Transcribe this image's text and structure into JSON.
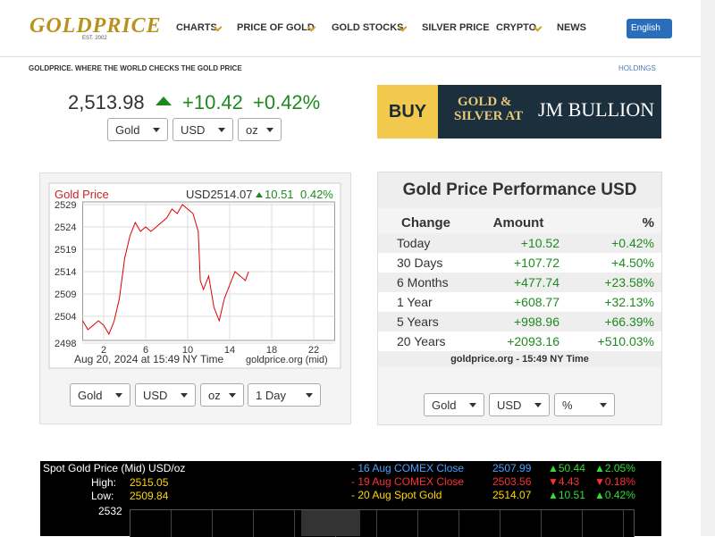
{
  "header": {
    "logo": "GOLDPRICE",
    "logo_tag": "EST. 2002",
    "nav": [
      "CHARTS",
      "PRICE OF GOLD",
      "GOLD STOCKS",
      "SILVER PRICE",
      "CRYPTO",
      "NEWS"
    ],
    "language": "English"
  },
  "subheader": {
    "tagline": "GOLDPRICE. WHERE THE WORLD CHECKS THE GOLD PRICE",
    "holdings": "HOLDINGS"
  },
  "quote": {
    "price": "2,513.98",
    "change": "+10.42",
    "change_pct": "+0.42%",
    "selects": [
      "Gold",
      "USD",
      "oz"
    ]
  },
  "ad": {
    "buy": "BUY",
    "line1": "GOLD &",
    "line2": "SILVER AT",
    "brand": "JM BULLION"
  },
  "price_chart": {
    "type": "line",
    "title": "Gold Price",
    "price": "USD2514.07",
    "change": "10.51",
    "change_pct": "0.42%",
    "unit": "oz",
    "caption": "Aug 20, 2024 at 15:49 NY Time",
    "source": "goldprice.org (mid)",
    "color": "#dd0000",
    "grid": true,
    "xlim": [
      0,
      24
    ],
    "xticks": [
      2,
      6,
      10,
      14,
      18,
      22
    ],
    "ylim": [
      2497,
      2529.6
    ],
    "yticks": [
      2498,
      2504,
      2509,
      2514,
      2519,
      2524,
      2529
    ],
    "x": [
      0,
      0.5,
      1,
      1.5,
      2,
      2.5,
      3,
      3.5,
      4,
      4.5,
      5,
      5.5,
      6,
      6.5,
      7,
      7.5,
      8,
      8.5,
      9,
      9.5,
      10,
      10.5,
      11,
      11.2,
      11.5,
      12,
      12.5,
      13,
      13.5,
      14,
      14.5,
      15,
      15.5,
      15.8
    ],
    "values": [
      2503,
      2501,
      2502,
      2503,
      2502,
      2500,
      2503,
      2508,
      2517,
      2522,
      2525,
      2523,
      2524,
      2523,
      2524,
      2525,
      2526,
      2528,
      2527,
      2529,
      2528,
      2527,
      2523,
      2512,
      2510,
      2513,
      2506,
      2503,
      2508,
      2511,
      2514,
      2513,
      2512,
      2514
    ],
    "selects": [
      "Gold",
      "USD",
      "oz",
      "1 Day"
    ]
  },
  "performance": {
    "title": "Gold Price Performance USD",
    "columns": [
      "Change",
      "Amount",
      "%"
    ],
    "rows": [
      [
        "Today",
        "+10.52",
        "+0.42%"
      ],
      [
        "30 Days",
        "+107.72",
        "+4.50%"
      ],
      [
        "6 Months",
        "+477.74",
        "+23.58%"
      ],
      [
        "1 Year",
        "+608.77",
        "+32.13%"
      ],
      [
        "5 Years",
        "+998.96",
        "+66.39%"
      ],
      [
        "20 Years",
        "+2093.16",
        "+510.03%"
      ]
    ],
    "footer": "goldprice.org - 15:49 NY Time",
    "selects": [
      "Gold",
      "USD",
      "%"
    ]
  },
  "spot": {
    "title": "Spot Gold Price (Mid) USD/oz",
    "high_label": "High:",
    "high": "2515.05",
    "low_label": "Low:",
    "low": "2509.84",
    "axis_top": "2532",
    "rows": [
      [
        "- 16 Aug COMEX Close",
        "2507.99",
        "▲50.44",
        "▲2.05%"
      ],
      [
        "- 19 Aug COMEX Close",
        "2503.56",
        "▼4.43",
        "▼0.18%"
      ],
      [
        "- 20 Aug Spot Gold",
        "2514.07",
        "▲10.51",
        "▲0.42%"
      ]
    ]
  }
}
